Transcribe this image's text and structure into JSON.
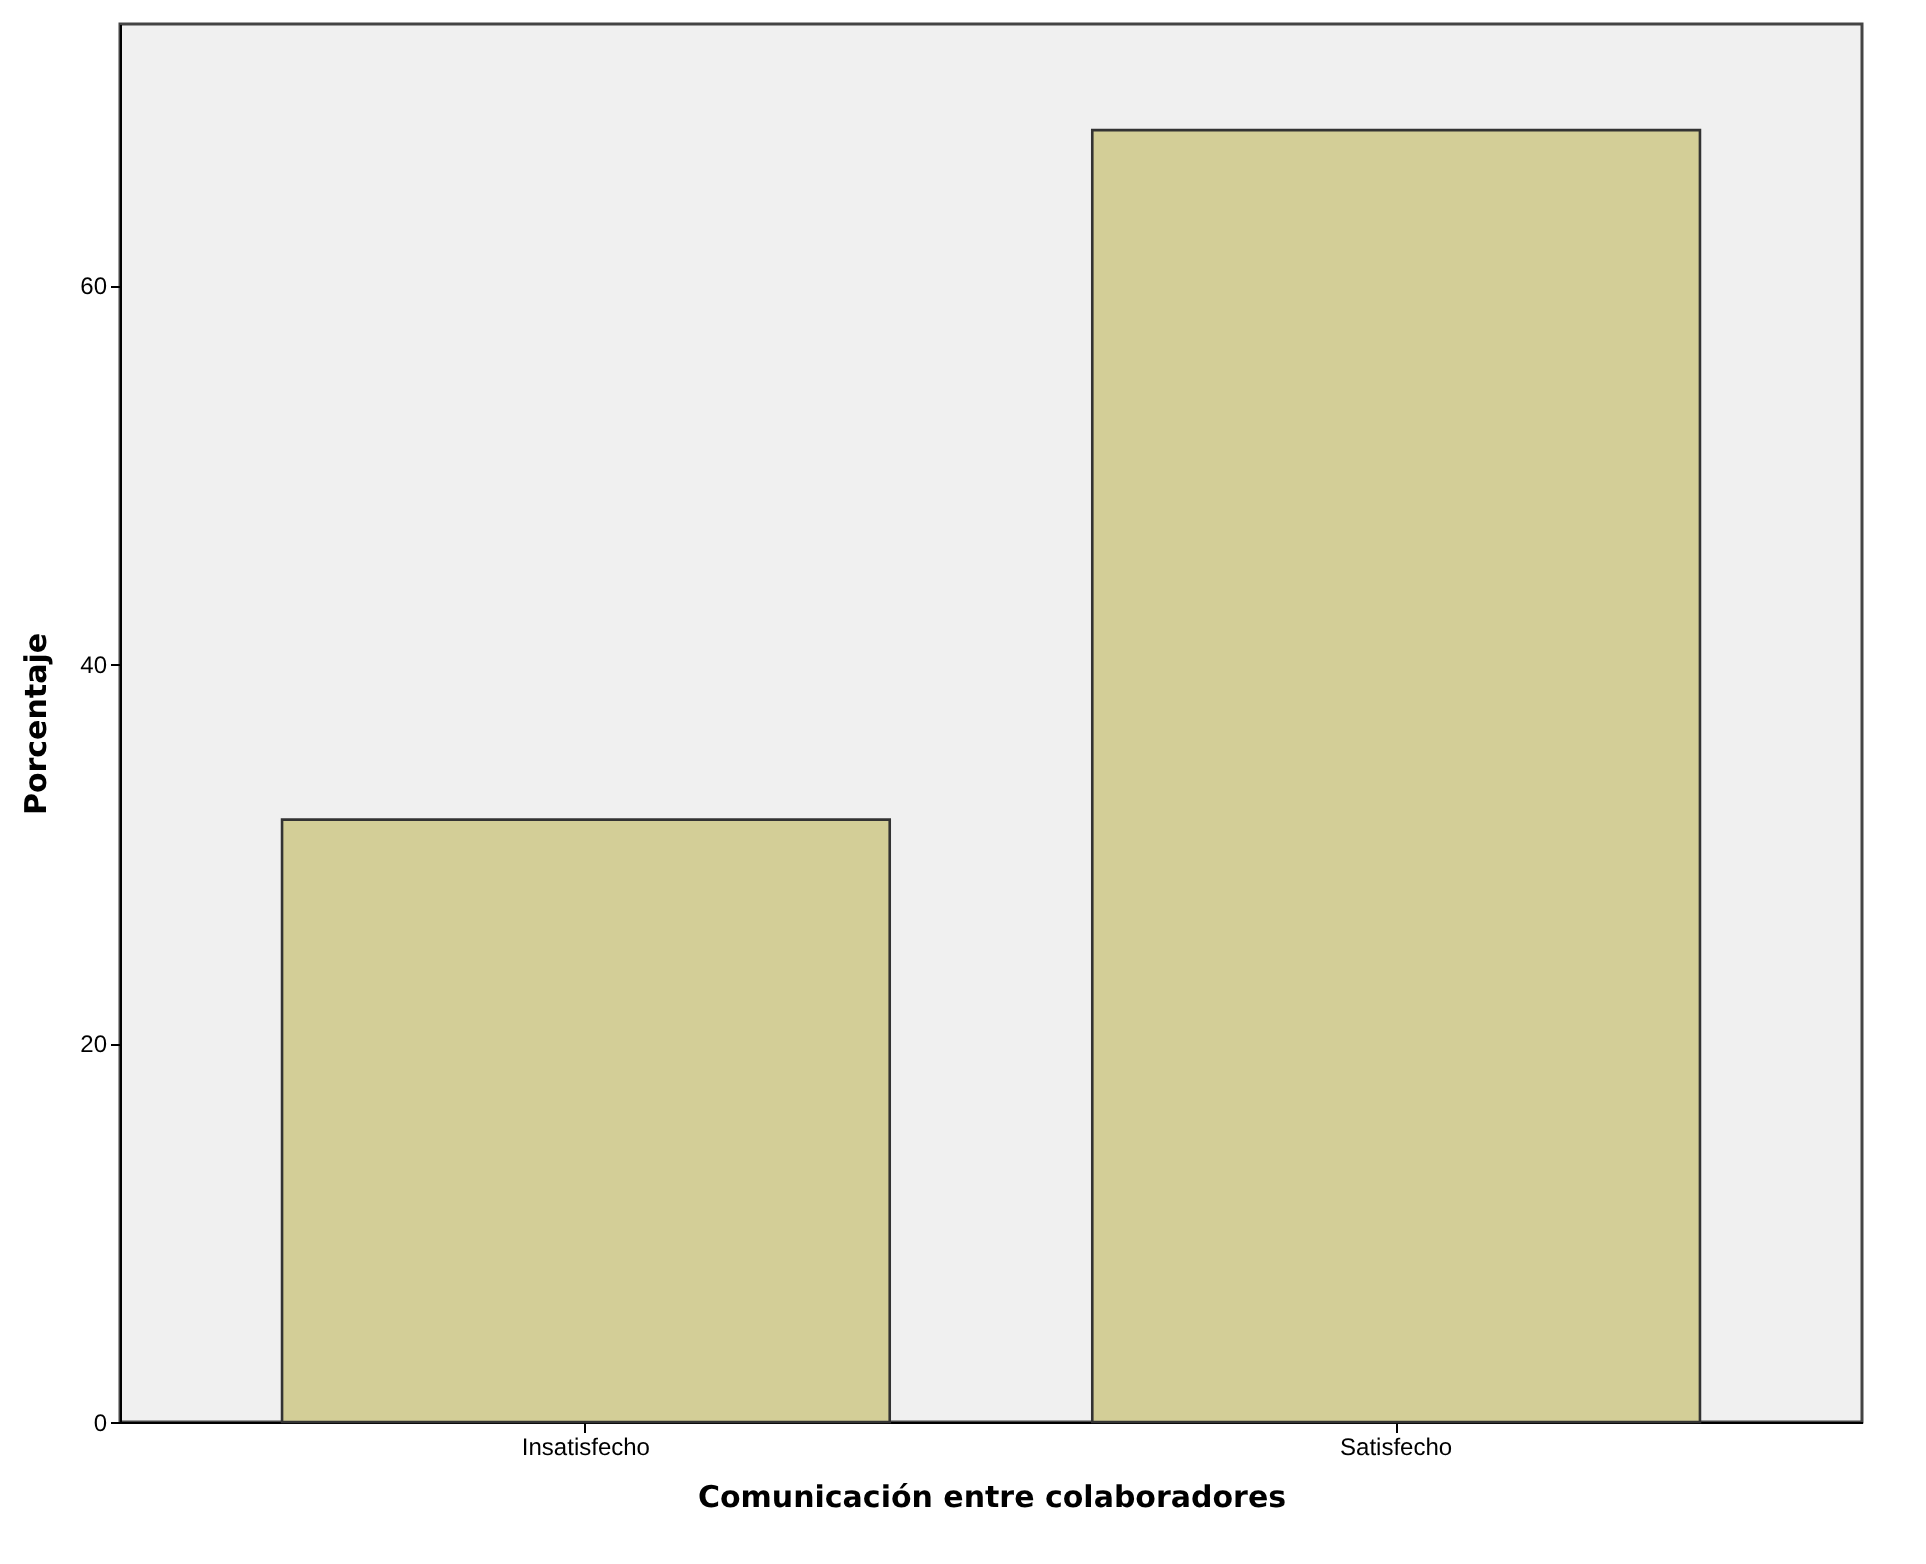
{
  "chart_data": {
    "type": "bar",
    "xlabel": "Comunicación entre colaboradores",
    "ylabel": "Porcentaje",
    "categories": [
      "Insatisfecho",
      "Satisfecho"
    ],
    "values": [
      31.8,
      68.2
    ],
    "color": "#d3ce97",
    "ylim": [
      0,
      73.8
    ],
    "yticks": [
      0,
      20,
      40,
      60
    ],
    "grid": false
  }
}
